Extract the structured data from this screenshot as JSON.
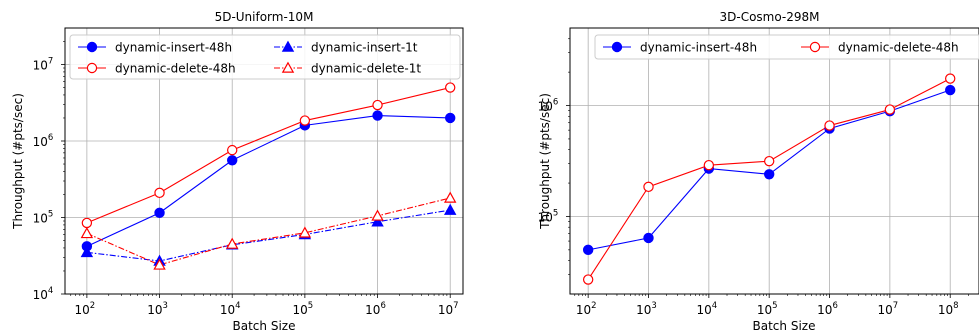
{
  "chart_data": [
    {
      "type": "line",
      "title": "5D-Uniform-10M",
      "xlabel": "Batch Size",
      "ylabel": "Throughput (#pts/sec)",
      "xscale": "log",
      "yscale": "log",
      "xlim": [
        50,
        15000000
      ],
      "ylim": [
        10000,
        30000000
      ],
      "grid": true,
      "legend_position": "top-left",
      "legend_columns": 2,
      "x": [
        100,
        1000,
        10000,
        100000,
        1000000,
        10000000
      ],
      "xtick_labels": [
        {
          "base": "10",
          "exp": "2",
          "value": 100
        },
        {
          "base": "10",
          "exp": "3",
          "value": 1000
        },
        {
          "base": "10",
          "exp": "4",
          "value": 10000
        },
        {
          "base": "10",
          "exp": "5",
          "value": 100000
        },
        {
          "base": "10",
          "exp": "6",
          "value": 1000000
        },
        {
          "base": "10",
          "exp": "7",
          "value": 10000000
        }
      ],
      "ytick_labels": [
        {
          "base": "10",
          "exp": "4",
          "value": 10000
        },
        {
          "base": "10",
          "exp": "5",
          "value": 100000
        },
        {
          "base": "10",
          "exp": "6",
          "value": 1000000
        },
        {
          "base": "10",
          "exp": "7",
          "value": 10000000
        }
      ],
      "series": [
        {
          "name": "dynamic-insert-48h",
          "color": "#0000ff",
          "marker": "circle-filled",
          "linestyle": "solid",
          "values": [
            42000,
            115000,
            560000,
            1600000,
            2150000,
            2000000
          ]
        },
        {
          "name": "dynamic-delete-48h",
          "color": "#ff0000",
          "marker": "circle-open",
          "linestyle": "solid",
          "values": [
            85000,
            210000,
            760000,
            1850000,
            2950000,
            5000000
          ]
        },
        {
          "name": "dynamic-insert-1t",
          "color": "#0000ff",
          "marker": "triangle-filled",
          "linestyle": "dashdot",
          "values": [
            35000,
            27000,
            44000,
            60000,
            88000,
            125000
          ]
        },
        {
          "name": "dynamic-delete-1t",
          "color": "#ff0000",
          "marker": "triangle-open",
          "linestyle": "dashdot",
          "values": [
            62000,
            24000,
            45000,
            63000,
            105000,
            180000
          ]
        }
      ]
    },
    {
      "type": "line",
      "title": "3D-Cosmo-298M",
      "xlabel": "Batch Size",
      "ylabel": "Throughput (#pts/sec)",
      "xscale": "log",
      "yscale": "log",
      "xlim": [
        50,
        300000000
      ],
      "ylim": [
        20000,
        5000000
      ],
      "grid": true,
      "legend_position": "top",
      "legend_columns": 2,
      "x": [
        100,
        1000,
        10000,
        100000,
        1000000,
        10000000,
        100000000
      ],
      "xtick_labels": [
        {
          "base": "10",
          "exp": "2",
          "value": 100
        },
        {
          "base": "10",
          "exp": "3",
          "value": 1000
        },
        {
          "base": "10",
          "exp": "4",
          "value": 10000
        },
        {
          "base": "10",
          "exp": "5",
          "value": 100000
        },
        {
          "base": "10",
          "exp": "6",
          "value": 1000000
        },
        {
          "base": "10",
          "exp": "7",
          "value": 10000000
        },
        {
          "base": "10",
          "exp": "8",
          "value": 100000000
        }
      ],
      "ytick_labels": [
        {
          "base": "10",
          "exp": "5",
          "value": 100000
        },
        {
          "base": "10",
          "exp": "6",
          "value": 1000000
        }
      ],
      "series": [
        {
          "name": "dynamic-insert-48h",
          "color": "#0000ff",
          "marker": "circle-filled",
          "linestyle": "solid",
          "values": [
            50000,
            64000,
            270000,
            240000,
            620000,
            890000,
            1380000
          ]
        },
        {
          "name": "dynamic-delete-48h",
          "color": "#ff0000",
          "marker": "circle-open",
          "linestyle": "solid",
          "values": [
            27000,
            185000,
            290000,
            315000,
            660000,
            920000,
            1750000
          ]
        }
      ]
    }
  ]
}
